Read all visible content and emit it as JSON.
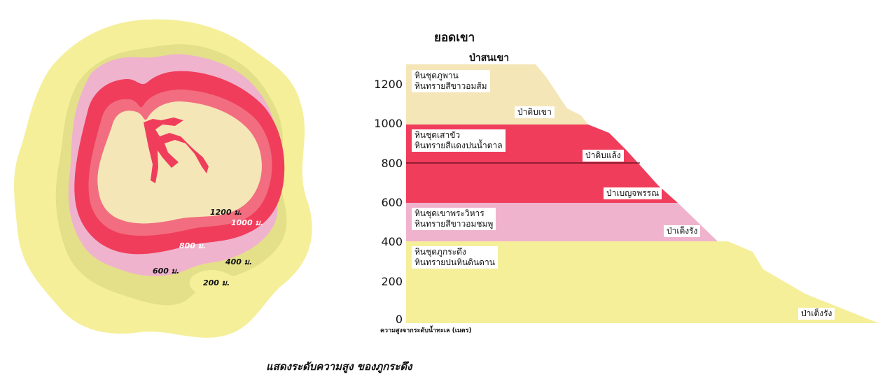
{
  "colors": {
    "yellow": "#f5ef9a",
    "olive": "#e4e08a",
    "pink": "#efb3cd",
    "red": "#f03d5c",
    "salmon": "#f26d7f",
    "cream": "#f5e6b8"
  },
  "map": {
    "contours": {
      "c1200": "1200 ม.",
      "c1000": "1000 ม.",
      "c800": "800 ม.",
      "c600": "600 ม.",
      "c400": "400 ม.",
      "c200": "200 ม."
    }
  },
  "profile": {
    "summit_label": "ยอดเขา",
    "top_forest": "ป่าสนเขา",
    "ticks": [
      "1200",
      "1000",
      "800",
      "600",
      "400",
      "200",
      "0"
    ],
    "axis_caption": "ความสูงจากระดับน้ำทะเล (เมตร)",
    "layers": {
      "phuphan_1": "หินชุดภูพาน",
      "phuphan_2": "หินทรายสีขาวอมส้ม",
      "saokhua_1": "หินชุดเสาขัว",
      "saokhua_2": "หินทรายสีแดงปนน้ำตาล",
      "phrawihan_1": "หินชุดเขาพระวิหาร",
      "phrawihan_2": "หินทรายสีขาวอมชมพู",
      "phukradueng_1": "หินชุดภูกระดึง",
      "phukradueng_2": "หินทรายปนหินดินดาน"
    },
    "forests": {
      "f1": "ป่าดิบเขา",
      "f2": "ป่าดิบแล้ง",
      "f3": "ป่าเบญจพรรณ",
      "f4": "ป่าเต็งรัง",
      "f5": "ป่าเต็งรัง"
    }
  },
  "caption": "แสดงระดับความสูง ของภูกระดึง"
}
